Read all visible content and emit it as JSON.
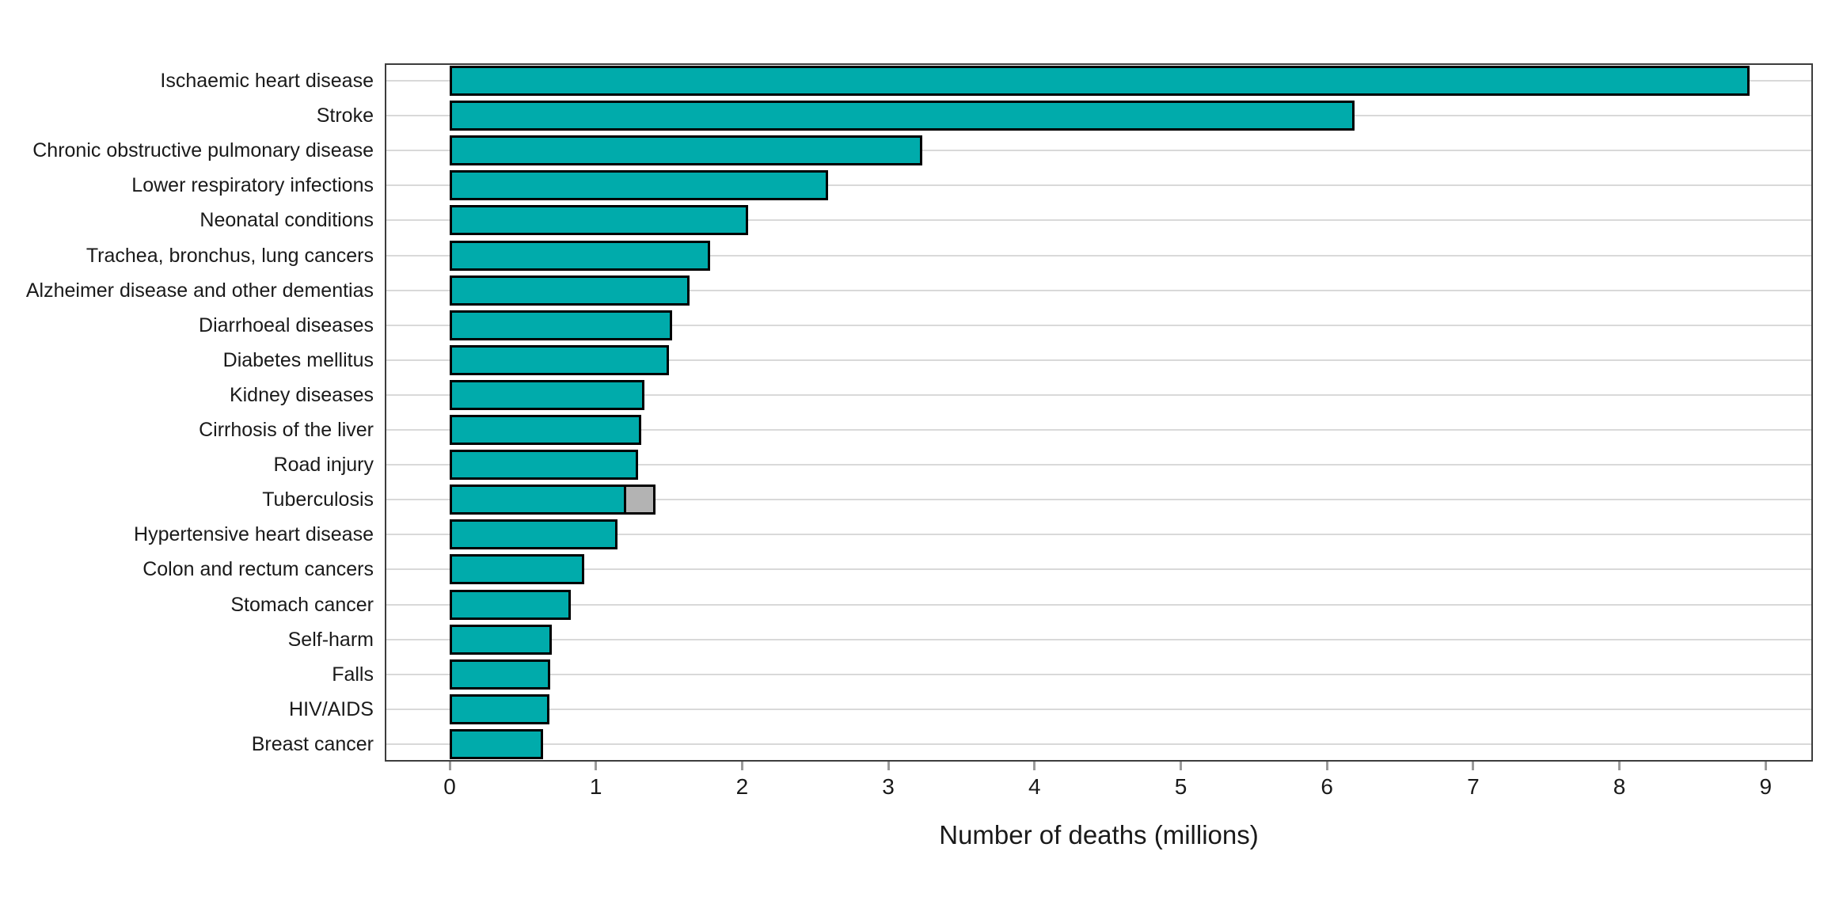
{
  "chart_data": {
    "type": "bar",
    "orientation": "horizontal",
    "title": "",
    "xlabel": "Number of deaths (millions)",
    "ylabel": "",
    "xlim": [
      -0.45,
      9.3
    ],
    "x_ticks": [
      0,
      1,
      2,
      3,
      4,
      5,
      6,
      7,
      8,
      9
    ],
    "grid": "horizontal major gridlines only, no vertical gridlines",
    "legend": "none",
    "colors": {
      "bar_fill": "#00abab",
      "secondary_segment_fill": "#b3b3b3",
      "bar_outline": "#000000",
      "gridline": "#d9d9d9",
      "panel_border": "#3d3d3d",
      "text": "#1a1a1a"
    },
    "bars": [
      {
        "label": "Ischaemic heart disease",
        "value": 8.89,
        "extra_gray_segment": 0
      },
      {
        "label": "Stroke",
        "value": 6.19,
        "extra_gray_segment": 0
      },
      {
        "label": "Chronic obstructive pulmonary disease",
        "value": 3.23,
        "extra_gray_segment": 0
      },
      {
        "label": "Lower respiratory infections",
        "value": 2.59,
        "extra_gray_segment": 0
      },
      {
        "label": "Neonatal conditions",
        "value": 2.04,
        "extra_gray_segment": 0
      },
      {
        "label": "Trachea, bronchus, lung cancers",
        "value": 1.78,
        "extra_gray_segment": 0
      },
      {
        "label": "Alzheimer disease and other dementias",
        "value": 1.64,
        "extra_gray_segment": 0
      },
      {
        "label": "Diarrhoeal diseases",
        "value": 1.52,
        "extra_gray_segment": 0
      },
      {
        "label": "Diabetes mellitus",
        "value": 1.5,
        "extra_gray_segment": 0
      },
      {
        "label": "Kidney diseases",
        "value": 1.33,
        "extra_gray_segment": 0
      },
      {
        "label": "Cirrhosis of the liver",
        "value": 1.31,
        "extra_gray_segment": 0
      },
      {
        "label": "Road injury",
        "value": 1.29,
        "extra_gray_segment": 0
      },
      {
        "label": "Tuberculosis",
        "value": 1.21,
        "extra_gray_segment": 0.2
      },
      {
        "label": "Hypertensive heart disease",
        "value": 1.15,
        "extra_gray_segment": 0
      },
      {
        "label": "Colon and rectum cancers",
        "value": 0.92,
        "extra_gray_segment": 0
      },
      {
        "label": "Stomach cancer",
        "value": 0.83,
        "extra_gray_segment": 0
      },
      {
        "label": "Self-harm",
        "value": 0.7,
        "extra_gray_segment": 0
      },
      {
        "label": "Falls",
        "value": 0.69,
        "extra_gray_segment": 0
      },
      {
        "label": "HIV/AIDS",
        "value": 0.68,
        "extra_gray_segment": 0
      },
      {
        "label": "Breast cancer",
        "value": 0.64,
        "extra_gray_segment": 0
      }
    ]
  }
}
